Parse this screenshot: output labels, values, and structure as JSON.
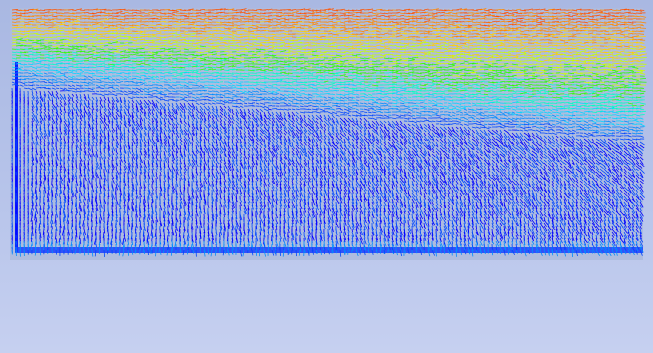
{
  "view": {
    "background_top": "#a9b8e2",
    "background_bottom": "#c6d0f0"
  },
  "colormap": [
    "#0000ff",
    "#0047ff",
    "#008cff",
    "#00d5ff",
    "#00ffc4",
    "#2bff00",
    "#c8ff00",
    "#ffd000",
    "#ff8a00",
    "#ff5200"
  ],
  "field_type": "velocity-vectors"
}
